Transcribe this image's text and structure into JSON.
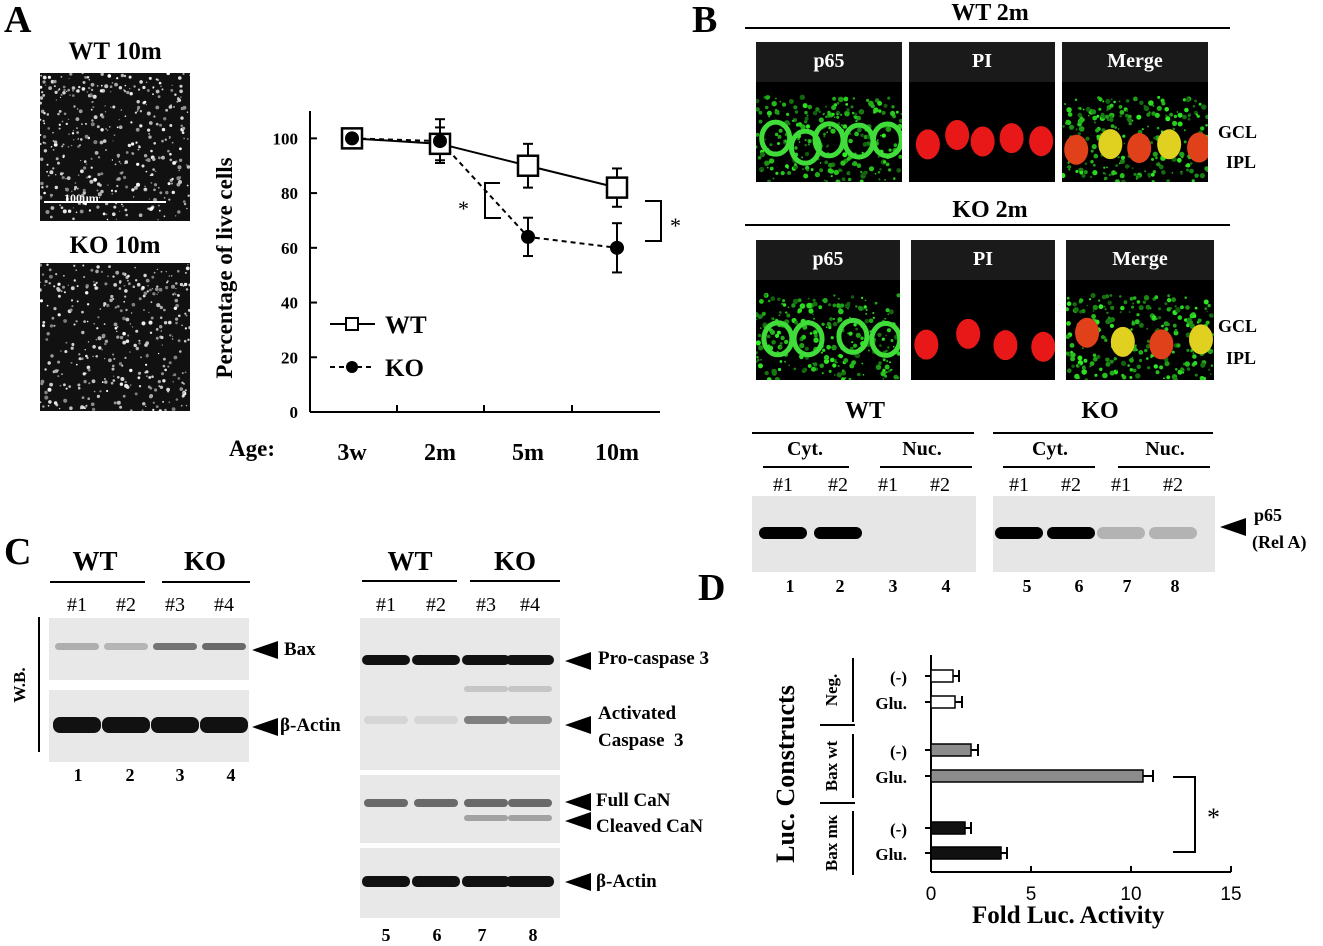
{
  "panels": {
    "a": "A",
    "b": "B",
    "c": "C",
    "d": "D"
  },
  "panelA": {
    "img_top_label": "WT 10m",
    "img_bottom_label": "KO 10m",
    "scalebar_label": "100μm",
    "age_label": "Age:",
    "star_left": "*",
    "star_right": "*",
    "chart_data": {
      "type": "line",
      "title": "",
      "xlabel": "Age:",
      "ylabel": "Percentage of live cells",
      "categories": [
        "3w",
        "2m",
        "5m",
        "10m"
      ],
      "ylim": [
        0,
        110
      ],
      "yticks": [
        "0",
        "20",
        "40",
        "60",
        "80",
        "100"
      ],
      "series": [
        {
          "name": "WT",
          "values": [
            100,
            98,
            90,
            82
          ],
          "errors": [
            2,
            6,
            8,
            7
          ],
          "marker": "open-square",
          "line": "solid"
        },
        {
          "name": "KO",
          "values": [
            100,
            99,
            64,
            60
          ],
          "errors": [
            2,
            8,
            7,
            9
          ],
          "marker": "filled-circle",
          "line": "dashed"
        }
      ]
    }
  },
  "panelB": {
    "wt_title": "WT 2m",
    "ko_title": "KO 2m",
    "wt_images": [
      "p65",
      "PI",
      "Merge"
    ],
    "ko_images": [
      "p65",
      "PI",
      "Merge"
    ],
    "layer_gcl": "GCL",
    "layer_ipl": "IPL",
    "blot_group_wt": "WT",
    "blot_group_ko": "KO",
    "fractions": [
      "Cyt.",
      "Nuc.",
      "Cyt.",
      "Nuc."
    ],
    "samples": [
      "#1",
      "#2",
      "#1",
      "#2",
      "#1",
      "#2",
      "#1",
      "#2"
    ],
    "lanes": [
      "1",
      "2",
      "3",
      "4",
      "5",
      "6",
      "7",
      "8"
    ],
    "band_label": "p65",
    "band_label2": "(Rel A)"
  },
  "panelC": {
    "left_groups": [
      "WT",
      "KO"
    ],
    "left_samples": [
      "#1",
      "#2",
      "#3",
      "#4"
    ],
    "wb_label": "W.B.",
    "left_bands": [
      "Bax",
      "β-Actin"
    ],
    "left_lanes": [
      "1",
      "2",
      "3",
      "4"
    ],
    "right_groups": [
      "WT",
      "KO"
    ],
    "right_samples": [
      "#1",
      "#2",
      "#3",
      "#4"
    ],
    "right_bands": [
      "Pro-caspase 3",
      "Activated",
      "Caspase  3",
      "Full CaN",
      "Cleaved CaN",
      "β-Actin"
    ],
    "right_lanes": [
      "5",
      "6",
      "7",
      "8"
    ]
  },
  "panelD": {
    "ylabel": "Luc. Constructs",
    "group_labels": [
      "Neg.",
      "Bax wt",
      "Bax mκ"
    ],
    "star": "*",
    "chart_data": {
      "type": "bar",
      "orientation": "horizontal",
      "xlabel": "Fold  Luc. Activity",
      "xlim": [
        0,
        15
      ],
      "xticks": [
        "0",
        "5",
        "10",
        "15"
      ],
      "categories": [
        "(-)",
        "Glu.",
        "(-)",
        "Glu.",
        "(-)",
        "Glu."
      ],
      "groups": [
        "Neg.",
        "Neg.",
        "Bax wt",
        "Bax wt",
        "Bax mκ",
        "Bax mκ"
      ],
      "values": [
        1.1,
        1.2,
        2.0,
        10.6,
        1.7,
        3.5
      ],
      "errors": [
        0.3,
        0.35,
        0.35,
        0.5,
        0.3,
        0.3
      ],
      "colors": [
        "#ffffff",
        "#ffffff",
        "#8c8c8c",
        "#8c8c8c",
        "#111111",
        "#111111"
      ]
    }
  }
}
